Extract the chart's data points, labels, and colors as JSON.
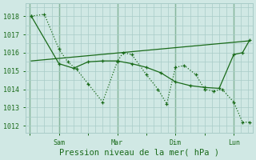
{
  "xlabel": "Pression niveau de la mer( hPa )",
  "background_color": "#d0e8e4",
  "grid_color": "#a8ccc8",
  "line_color": "#1a6b1a",
  "ylim": [
    1011.6,
    1018.7
  ],
  "yticks": [
    1012,
    1013,
    1014,
    1015,
    1016,
    1017,
    1018
  ],
  "xtick_labels": [
    "",
    "Sam",
    "",
    "Mar",
    "",
    "Dim",
    "",
    "Lun"
  ],
  "xtick_positions": [
    0,
    1,
    2,
    3,
    4,
    5,
    6,
    7
  ],
  "xlim": [
    -0.15,
    7.65
  ],
  "day_lines": [
    0,
    1,
    3,
    5,
    7
  ],
  "zigzag_x": [
    0.05,
    0.5,
    1.0,
    1.3,
    1.6,
    2.0,
    2.5,
    3.0,
    3.2,
    3.5,
    4.0,
    4.4,
    4.7,
    5.0,
    5.3,
    5.7,
    6.0,
    6.3,
    6.6,
    7.0,
    7.3,
    7.55
  ],
  "zigzag_y": [
    1018.0,
    1018.1,
    1016.2,
    1015.5,
    1015.1,
    1014.3,
    1013.3,
    1015.5,
    1016.0,
    1015.9,
    1014.8,
    1014.0,
    1013.2,
    1015.2,
    1015.3,
    1014.8,
    1014.0,
    1013.9,
    1014.0,
    1013.3,
    1012.2,
    1012.2
  ],
  "smooth_x": [
    0.05,
    1.0,
    1.5,
    2.0,
    2.5,
    3.0,
    3.5,
    4.0,
    4.5,
    5.0,
    5.5,
    6.0,
    6.5,
    7.0,
    7.3,
    7.55
  ],
  "smooth_y": [
    1018.0,
    1015.4,
    1015.15,
    1015.5,
    1015.55,
    1015.55,
    1015.4,
    1015.2,
    1014.9,
    1014.4,
    1014.2,
    1014.1,
    1014.05,
    1015.9,
    1016.0,
    1016.7
  ],
  "trend_x": [
    0.05,
    7.55
  ],
  "trend_y": [
    1015.55,
    1016.65
  ]
}
